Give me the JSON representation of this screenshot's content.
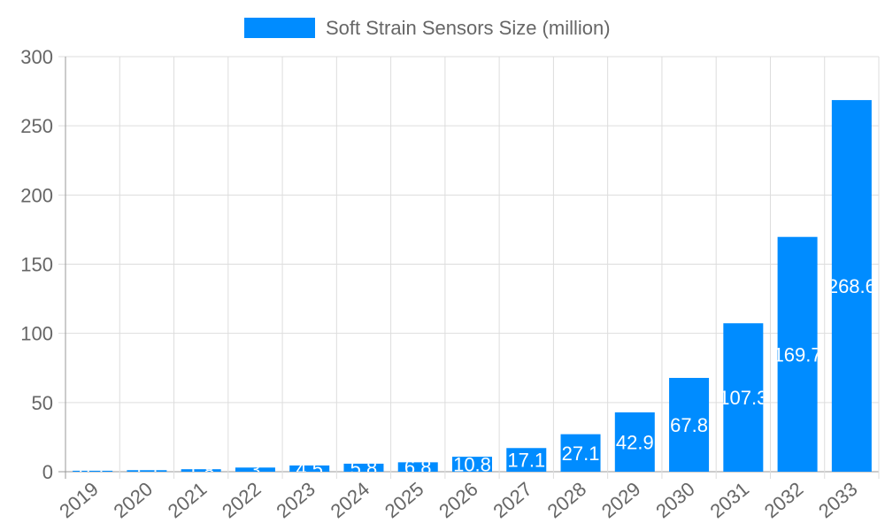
{
  "chart_data": {
    "type": "bar",
    "categories": [
      "2019",
      "2020",
      "2021",
      "2022",
      "2023",
      "2024",
      "2025",
      "2026",
      "2027",
      "2028",
      "2029",
      "2030",
      "2031",
      "2032",
      "2033"
    ],
    "series": [
      {
        "name": "Soft Strain Sensors Size (million)",
        "values": [
          0.7,
          1.1,
          1.8,
          3,
          4.5,
          5.8,
          6.8,
          10.8,
          17.1,
          27.1,
          42.9,
          67.8,
          107.3,
          169.7,
          268.6
        ]
      }
    ],
    "ylim": [
      0,
      300
    ],
    "yticks": [
      0,
      50,
      100,
      150,
      200,
      250,
      300
    ],
    "grid": true,
    "legend": "top",
    "color": "#008cff"
  }
}
